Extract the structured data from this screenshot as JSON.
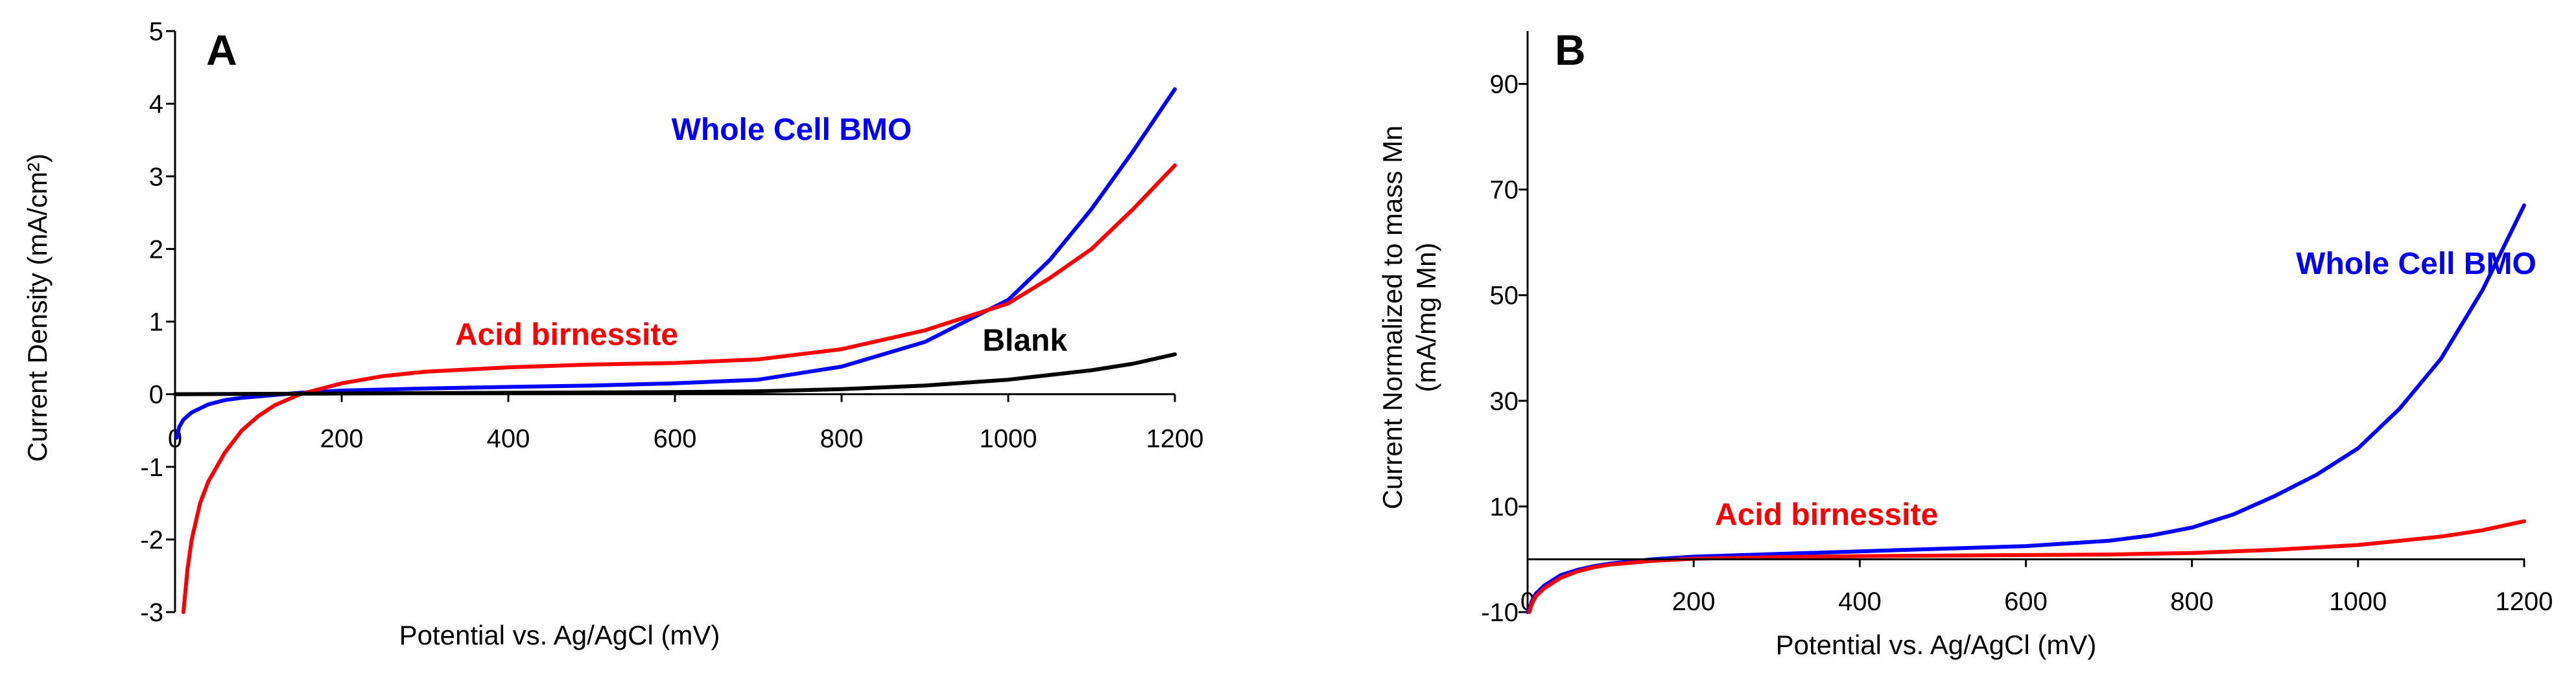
{
  "chart_data": [
    {
      "panel": "A",
      "type": "line",
      "xlabel": "Potential vs. Ag/AgCl (mV)",
      "ylabel": "Current  Density (mA/cm²)",
      "xlim": [
        0,
        1200
      ],
      "ylim": [
        -3,
        5
      ],
      "xticks": [
        0,
        200,
        400,
        600,
        800,
        1000,
        1200
      ],
      "yticks": [
        -3,
        -2,
        -1,
        0,
        1,
        2,
        3,
        4,
        5
      ],
      "annotations": [
        {
          "text": "Whole Cell BMO",
          "color": "#0000ff",
          "x": 740,
          "y": 3.5,
          "anchor": "middle"
        },
        {
          "text": "Acid birnessite",
          "color": "#ff0000",
          "x": 470,
          "y": 0.68,
          "anchor": "middle"
        },
        {
          "text": "Blank",
          "color": "#000000",
          "x": 1020,
          "y": 0.6,
          "anchor": "middle"
        }
      ],
      "series": [
        {
          "name": "Whole Cell BMO",
          "color": "#0000ff",
          "x": [
            2,
            5,
            10,
            20,
            40,
            60,
            80,
            100,
            120,
            150,
            200,
            300,
            400,
            500,
            600,
            700,
            800,
            900,
            1000,
            1050,
            1100,
            1150,
            1200
          ],
          "y": [
            -0.6,
            -0.45,
            -0.35,
            -0.25,
            -0.14,
            -0.08,
            -0.05,
            -0.03,
            -0.01,
            0.02,
            0.05,
            0.08,
            0.1,
            0.12,
            0.15,
            0.2,
            0.38,
            0.72,
            1.3,
            1.85,
            2.55,
            3.35,
            4.2
          ]
        },
        {
          "name": "Acid birnessite",
          "color": "#ff0000",
          "x": [
            10,
            15,
            20,
            30,
            40,
            60,
            80,
            100,
            120,
            150,
            200,
            250,
            300,
            400,
            500,
            600,
            700,
            800,
            900,
            1000,
            1050,
            1100,
            1150,
            1200
          ],
          "y": [
            -3.0,
            -2.4,
            -2.0,
            -1.5,
            -1.2,
            -0.8,
            -0.5,
            -0.3,
            -0.15,
            0.0,
            0.15,
            0.25,
            0.31,
            0.37,
            0.41,
            0.43,
            0.48,
            0.62,
            0.88,
            1.25,
            1.6,
            2.0,
            2.55,
            3.15
          ]
        },
        {
          "name": "Blank",
          "color": "#000000",
          "x": [
            0,
            200,
            400,
            600,
            700,
            800,
            900,
            1000,
            1100,
            1150,
            1200
          ],
          "y": [
            0,
            0.01,
            0.02,
            0.03,
            0.04,
            0.07,
            0.12,
            0.2,
            0.33,
            0.42,
            0.55
          ]
        }
      ]
    },
    {
      "panel": "B",
      "type": "line",
      "xlabel": "Potential vs. Ag/AgCl (mV)",
      "ylabel_line1": "Current  Normalized to mass Mn",
      "ylabel_line2": "(mA/mg Mn)",
      "xlim": [
        0,
        1200
      ],
      "ylim": [
        -10,
        100
      ],
      "xticks": [
        0,
        200,
        400,
        600,
        800,
        1000,
        1200
      ],
      "yticks": [
        -10,
        10,
        30,
        50,
        70,
        90
      ],
      "annotations": [
        {
          "text": "Whole Cell BMO",
          "color": "#0000ff",
          "x": 1070,
          "y": 54,
          "anchor": "middle"
        },
        {
          "text": "Acid birnessite",
          "color": "#ff0000",
          "x": 360,
          "y": 6.5,
          "anchor": "middle"
        }
      ],
      "series": [
        {
          "name": "Whole Cell BMO",
          "color": "#0000ff",
          "x": [
            0,
            2,
            5,
            10,
            20,
            40,
            60,
            80,
            100,
            150,
            200,
            300,
            400,
            500,
            600,
            700,
            750,
            800,
            850,
            900,
            950,
            1000,
            1050,
            1100,
            1150,
            1200
          ],
          "y": [
            -10,
            -9.5,
            -8,
            -6.5,
            -5,
            -3,
            -2,
            -1.3,
            -0.8,
            0,
            0.5,
            1,
            1.5,
            2,
            2.5,
            3.5,
            4.5,
            6,
            8.5,
            12,
            16,
            21,
            28.5,
            38,
            51,
            67
          ]
        },
        {
          "name": "Acid birnessite",
          "color": "#ff0000",
          "x": [
            2,
            5,
            10,
            20,
            40,
            60,
            80,
            100,
            150,
            200,
            300,
            400,
            500,
            600,
            700,
            800,
            900,
            1000,
            1100,
            1150,
            1200
          ],
          "y": [
            -10,
            -8.5,
            -7,
            -5.5,
            -3.5,
            -2.3,
            -1.5,
            -1.0,
            -0.3,
            0.1,
            0.4,
            0.6,
            0.7,
            0.8,
            0.9,
            1.2,
            1.8,
            2.7,
            4.3,
            5.5,
            7.2
          ]
        },
        {
          "name": "Zero line",
          "color": "#000000",
          "x": [
            0,
            1200
          ],
          "y": [
            0,
            0
          ]
        }
      ]
    }
  ]
}
